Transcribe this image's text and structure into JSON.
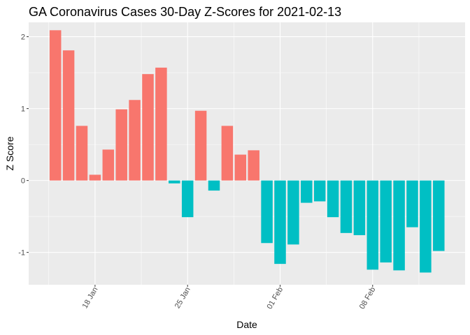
{
  "chart_data": {
    "type": "bar",
    "title": "GA Coronavirus Cases 30-Day Z-Scores for 2021-02-13",
    "xlabel": "Date",
    "ylabel": "Z Score",
    "x_start_day": 15,
    "x_end_day": 44,
    "x_ticks": [
      {
        "day": 18,
        "label": "18 Jan"
      },
      {
        "day": 25,
        "label": "25 Jan"
      },
      {
        "day": 32,
        "label": "01 Feb"
      },
      {
        "day": 39,
        "label": "08 Feb"
      }
    ],
    "y_ticks": [
      -1,
      0,
      1,
      2
    ],
    "ylim": [
      -1.45,
      2.2
    ],
    "values": [
      2.09,
      1.81,
      0.76,
      0.08,
      0.43,
      0.99,
      1.12,
      1.48,
      1.57,
      -0.04,
      -0.51,
      0.97,
      -0.14,
      0.76,
      0.36,
      0.42,
      -0.87,
      -1.16,
      -0.89,
      -0.31,
      -0.29,
      -0.51,
      -0.73,
      -0.76,
      -1.24,
      -1.14,
      -1.25,
      -0.65,
      -1.28,
      -0.98
    ],
    "colors": {
      "positive": "#F8766D",
      "negative": "#00BFC4",
      "panel": "#EBEBEB"
    },
    "legend": "none"
  }
}
